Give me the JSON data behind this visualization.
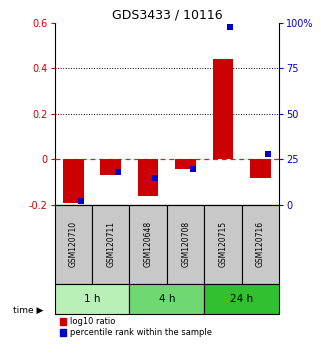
{
  "title": "GDS3433 / 10116",
  "samples": [
    "GSM120710",
    "GSM120711",
    "GSM120648",
    "GSM120708",
    "GSM120715",
    "GSM120716"
  ],
  "log10_ratio": [
    -0.19,
    -0.07,
    -0.16,
    -0.04,
    0.44,
    -0.08
  ],
  "percentile_rank": [
    2,
    18,
    15,
    20,
    98,
    28
  ],
  "ylim_left": [
    -0.2,
    0.6
  ],
  "ylim_right": [
    0,
    100
  ],
  "yticks_left": [
    -0.2,
    0.0,
    0.2,
    0.4,
    0.6
  ],
  "yticks_right": [
    0,
    25,
    50,
    75,
    100
  ],
  "ytick_labels_left": [
    "-0.2",
    "0",
    "0.2",
    "0.4",
    "0.6"
  ],
  "ytick_labels_right": [
    "0",
    "25",
    "50",
    "75",
    "100%"
  ],
  "time_groups": [
    {
      "label": "1 h",
      "samples": [
        "GSM120710",
        "GSM120711"
      ],
      "color": "#b8f0b8"
    },
    {
      "label": "4 h",
      "samples": [
        "GSM120648",
        "GSM120708"
      ],
      "color": "#70d870"
    },
    {
      "label": "24 h",
      "samples": [
        "GSM120715",
        "GSM120716"
      ],
      "color": "#30c030"
    }
  ],
  "bar_color_red": "#cc0000",
  "bar_color_blue": "#0000cc",
  "legend_red": "log10 ratio",
  "legend_blue": "percentile rank within the sample",
  "left_label_color": "#cc0000",
  "right_label_color": "#0000cc",
  "sample_box_color": "#c8c8c8"
}
